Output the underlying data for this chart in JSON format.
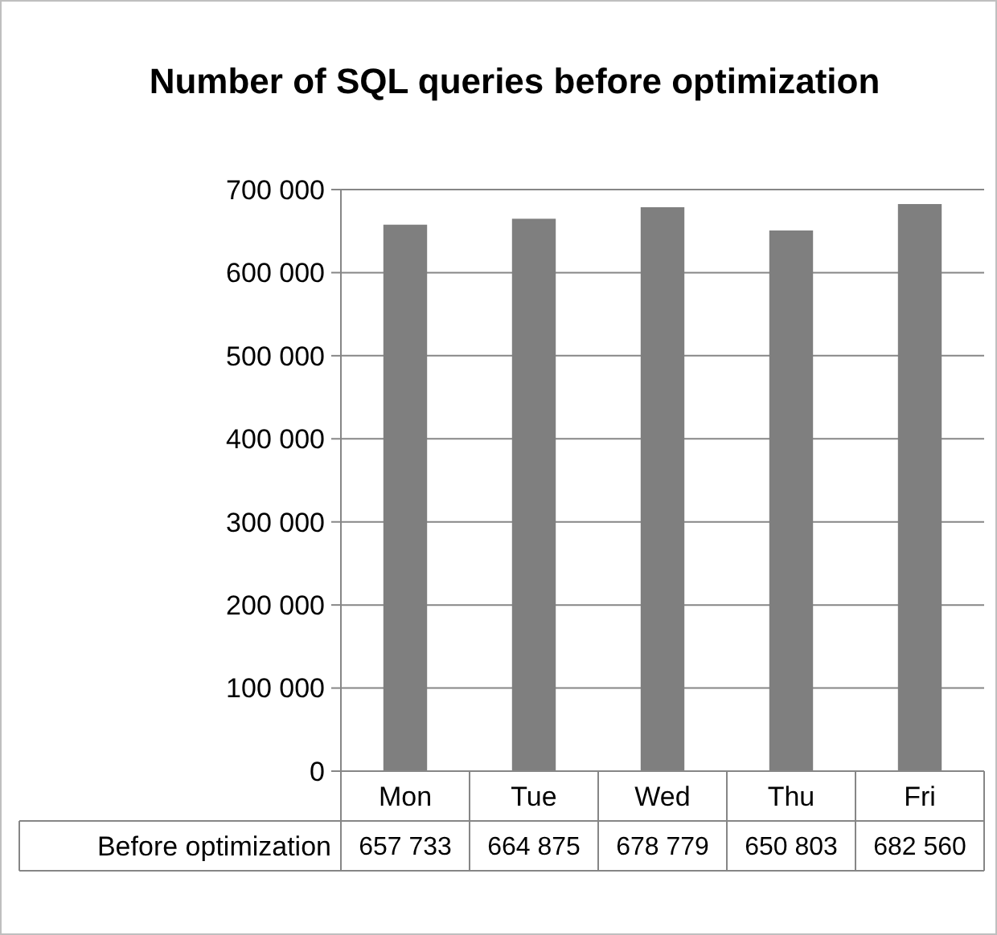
{
  "chart_data": {
    "type": "bar",
    "title": "Number of SQL queries before optimization",
    "categories": [
      "Mon",
      "Tue",
      "Wed",
      "Thu",
      "Fri"
    ],
    "series": [
      {
        "name": "Before optimization",
        "color": "#7f7f7f",
        "values": [
          657733,
          664875,
          678779,
          650803,
          682560
        ],
        "value_labels": [
          "657 733",
          "664 875",
          "678 779",
          "650 803",
          "682 560"
        ]
      }
    ],
    "ylim": [
      0,
      700000
    ],
    "yticks": [
      0,
      {
        "value": 100000,
        "label": "100 000"
      },
      {
        "value": 200000,
        "label": "200 000"
      },
      {
        "value": 300000,
        "label": "300 000"
      },
      {
        "value": 400000,
        "label": "400 000"
      },
      {
        "value": 500000,
        "label": "500 000"
      },
      {
        "value": 600000,
        "label": "600 000"
      },
      {
        "value": 700000,
        "label": "700 000"
      }
    ],
    "grid": "y"
  }
}
